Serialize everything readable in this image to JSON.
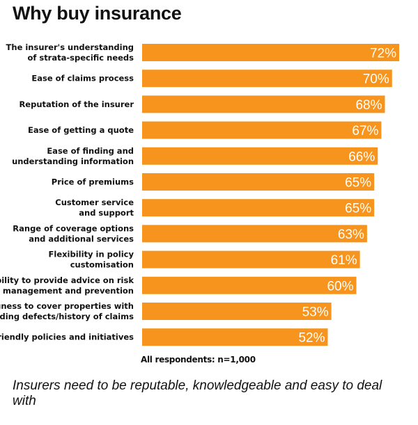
{
  "page": {
    "title": "Why buy insurance",
    "note": "All respondents: n=1,000",
    "caption": "Insurers need to be reputable, knowledgeable and easy to deal with"
  },
  "colors": {
    "bar": "#F7941D",
    "value_text": "#FFFFFF",
    "label_text": "#111111"
  },
  "chart_data": {
    "type": "bar",
    "orientation": "horizontal",
    "title": "Why buy insurance",
    "categories": [
      [
        "The insurer's understanding",
        "of strata-specific needs"
      ],
      [
        "Ease of claims process"
      ],
      [
        "Reputation of the insurer"
      ],
      [
        "Ease of getting a quote"
      ],
      [
        "Ease of finding and",
        "understanding information"
      ],
      [
        "Price of premiums"
      ],
      [
        "Customer service",
        "and support"
      ],
      [
        "Range of coverage options",
        "and additional services"
      ],
      [
        "Flexibility in policy",
        "customisation"
      ],
      [
        "Ability to provide advice on risk",
        "management and prevention"
      ],
      [
        "Willingness to cover properties with",
        "building defects/history of claims"
      ],
      [
        "Eco-friendly policies and initiatives"
      ]
    ],
    "values": [
      72,
      70,
      68,
      67,
      66,
      65,
      65,
      63,
      61,
      60,
      53,
      52
    ],
    "value_labels": [
      "72%",
      "70%",
      "68%",
      "67%",
      "66%",
      "65%",
      "65%",
      "63%",
      "61%",
      "60%",
      "53%",
      "52%"
    ],
    "xlim": [
      0,
      72
    ],
    "grid": false,
    "legend": "none"
  }
}
